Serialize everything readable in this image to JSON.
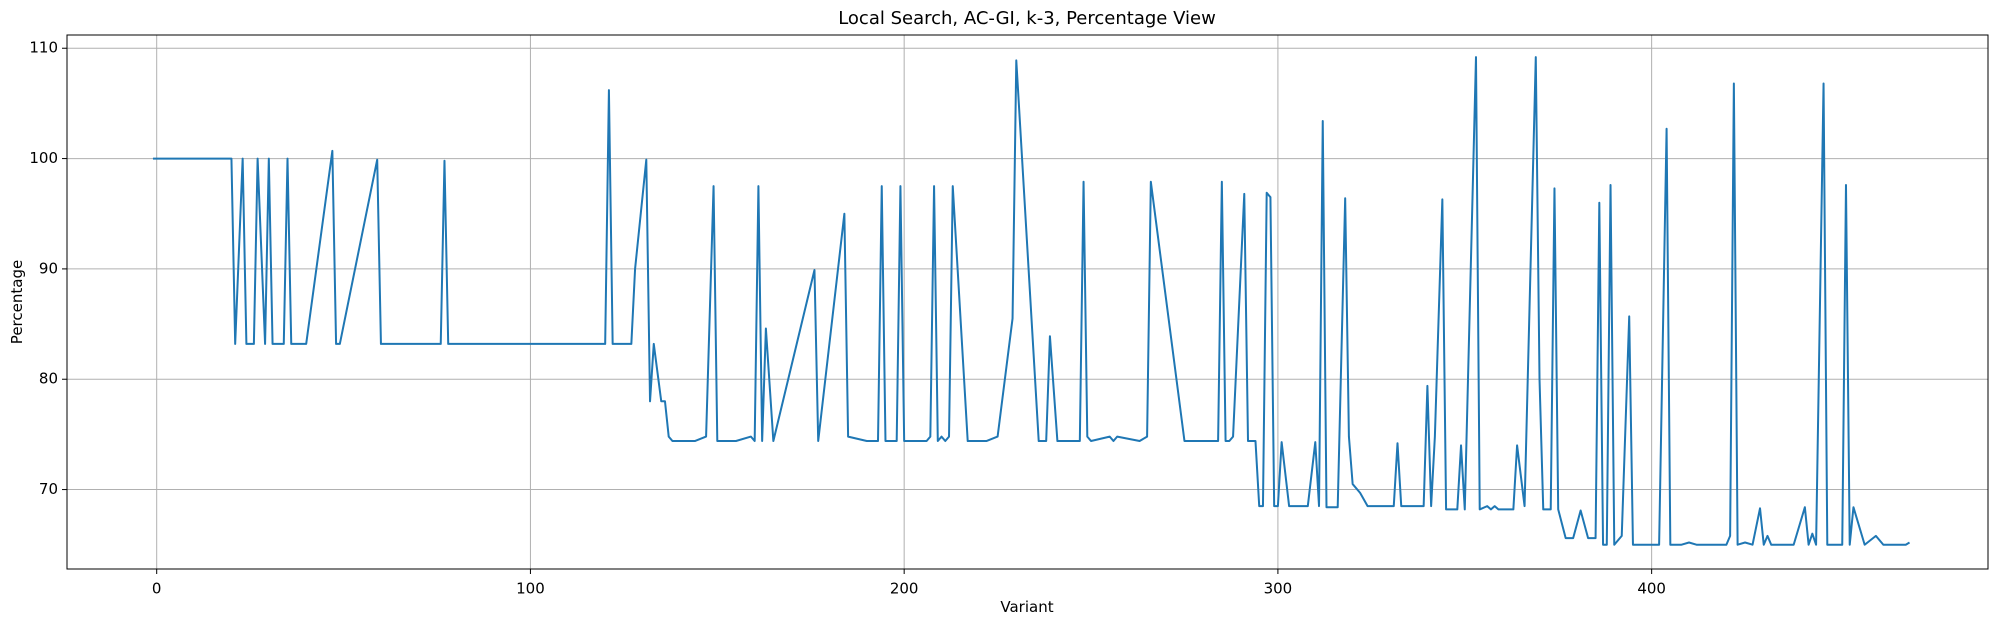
{
  "chart_data": {
    "type": "line",
    "title": "Local Search, AC-GI, k-3, Percentage View",
    "xlabel": "Variant",
    "ylabel": "Percentage",
    "xlim": [
      -24,
      490
    ],
    "ylim": [
      62.8,
      111.2
    ],
    "xticks": [
      0,
      100,
      200,
      300,
      400
    ],
    "yticks": [
      70,
      80,
      90,
      100,
      110
    ],
    "grid": true,
    "series": [
      {
        "color": "#1f77b4",
        "x": [
          -1,
          20,
          21,
          23,
          24,
          26,
          27,
          29,
          30,
          31,
          34,
          35,
          36,
          40,
          47,
          48,
          49,
          59,
          60,
          76,
          77,
          78,
          118,
          120,
          121,
          122,
          127,
          128,
          131,
          132,
          133,
          135,
          136,
          137,
          138,
          144,
          147,
          149,
          150,
          155,
          159,
          160,
          161,
          162,
          163,
          165,
          176,
          177,
          184,
          185,
          190,
          193,
          194,
          195,
          198,
          199,
          200,
          206,
          207,
          208,
          209,
          210,
          211,
          212,
          213,
          217,
          222,
          225,
          229,
          230,
          236,
          237,
          238,
          239,
          241,
          247,
          248,
          249,
          250,
          255,
          256,
          257,
          263,
          265,
          266,
          275,
          284,
          285,
          286,
          287,
          288,
          291,
          292,
          294,
          295,
          296,
          297,
          298,
          299,
          300,
          301,
          303,
          308,
          310,
          311,
          312,
          313,
          316,
          318,
          319,
          320,
          322,
          324,
          329,
          331,
          332,
          333,
          339,
          340,
          341,
          342,
          344,
          345,
          348,
          349,
          350,
          353,
          354,
          356,
          357,
          358,
          359,
          363,
          364,
          366,
          369,
          370,
          371,
          373,
          374,
          375,
          377,
          379,
          381,
          383,
          385,
          386,
          387,
          388,
          389,
          390,
          392,
          394,
          395,
          402,
          404,
          405,
          408,
          410,
          412,
          420,
          421,
          422,
          423,
          425,
          427,
          429,
          430,
          431,
          432,
          438,
          441,
          442,
          443,
          444,
          446,
          447,
          451,
          452,
          453,
          454,
          457,
          460,
          462,
          468,
          469
        ],
        "values": [
          100,
          100,
          83.2,
          100,
          83.2,
          83.2,
          100,
          83.2,
          100,
          83.2,
          83.2,
          100,
          83.2,
          83.2,
          100.7,
          83.2,
          83.2,
          99.9,
          83.2,
          83.2,
          99.8,
          83.2,
          83.2,
          83.2,
          106.2,
          83.2,
          83.2,
          90,
          99.9,
          78,
          83.2,
          78,
          78,
          74.8,
          74.4,
          74.4,
          74.8,
          97.5,
          74.4,
          74.4,
          74.8,
          74.4,
          97.5,
          74.4,
          84.6,
          74.4,
          89.9,
          74.4,
          95,
          74.8,
          74.4,
          74.4,
          97.5,
          74.4,
          74.4,
          97.5,
          74.4,
          74.4,
          74.8,
          97.5,
          74.4,
          74.8,
          74.4,
          74.8,
          97.5,
          74.4,
          74.4,
          74.8,
          85.5,
          108.9,
          74.4,
          74.4,
          74.4,
          83.9,
          74.4,
          74.4,
          97.9,
          74.8,
          74.4,
          74.8,
          74.4,
          74.8,
          74.4,
          74.8,
          97.9,
          74.4,
          74.4,
          97.9,
          74.4,
          74.4,
          74.8,
          96.8,
          74.4,
          74.4,
          68.5,
          68.5,
          96.9,
          96.5,
          68.5,
          68.5,
          74.3,
          68.5,
          68.5,
          74.3,
          68.5,
          103.4,
          68.4,
          68.4,
          96.4,
          74.8,
          70.5,
          69.7,
          68.5,
          68.5,
          68.5,
          74.2,
          68.5,
          68.5,
          79.4,
          68.5,
          74.8,
          96.3,
          68.2,
          68.2,
          74,
          68.2,
          109.2,
          68.2,
          68.5,
          68.2,
          68.5,
          68.2,
          68.2,
          74,
          68.5,
          109.2,
          80,
          68.2,
          68.2,
          97.3,
          68.2,
          65.6,
          65.6,
          68.1,
          65.6,
          65.6,
          96,
          65,
          65,
          97.6,
          65,
          65.8,
          85.7,
          65,
          65,
          102.7,
          65,
          65,
          65.2,
          65,
          65,
          65.8,
          106.8,
          65,
          65.2,
          65,
          68.3,
          65,
          65.8,
          65,
          65,
          68.4,
          65,
          66,
          65,
          106.8,
          65,
          65,
          97.6,
          65,
          68.4,
          65,
          65.8,
          65,
          65,
          65.2
        ]
      }
    ]
  }
}
